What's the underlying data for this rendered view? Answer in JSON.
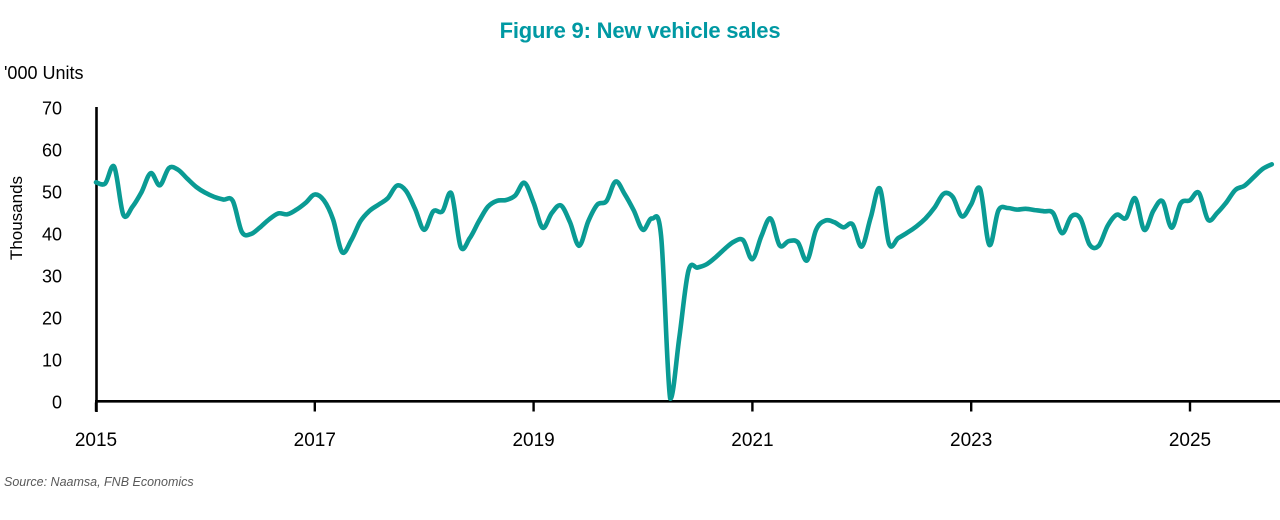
{
  "title": "Figure 9: New vehicle sales",
  "y_axis_units_label": "'000 Units",
  "y_axis_side_label": "Thousands",
  "source_note": "Source: Naamsa, FNB Economics",
  "colors": {
    "title_teal": "#0099a3",
    "line_teal": "#0a9b94",
    "axis_black": "#000000",
    "source_gray": "#595959"
  },
  "chart_data": {
    "type": "line",
    "title": "Figure 9: New vehicle sales",
    "ylabel": "Thousands",
    "y_units": "'000 Units",
    "ylim": [
      0,
      70
    ],
    "yticks": [
      0,
      10,
      20,
      30,
      40,
      50,
      60,
      70
    ],
    "xtick_labels": [
      "2015",
      "2017",
      "2019",
      "2021",
      "2023",
      "2025"
    ],
    "grid": false,
    "legend_position": "none",
    "frequency": "monthly",
    "x_start": "2015-01",
    "x_end": "2025-10",
    "series": [
      {
        "name": "New vehicle sales ('000 units)",
        "values": [
          52.3,
          52.0,
          56.0,
          44.6,
          46.5,
          50.0,
          54.5,
          51.6,
          55.7,
          55.3,
          53.2,
          51.2,
          49.8,
          48.8,
          48.2,
          47.9,
          40.5,
          40.0,
          41.6,
          43.5,
          44.9,
          44.7,
          45.8,
          47.4,
          49.4,
          48.0,
          43.5,
          35.7,
          38.5,
          43.0,
          45.5,
          47.0,
          48.5,
          51.5,
          50.3,
          46.0,
          41.0,
          45.4,
          45.4,
          49.6,
          37.0,
          39.0,
          43.0,
          46.5,
          47.9,
          48.1,
          49.2,
          52.2,
          47.5,
          41.5,
          45.0,
          46.8,
          42.8,
          37.2,
          43.0,
          47.0,
          47.8,
          52.5,
          49.5,
          45.6,
          41.0,
          43.7,
          39.5,
          0.8,
          15.5,
          31.3,
          32.0,
          32.8,
          34.5,
          36.5,
          38.2,
          38.5,
          34.0,
          39.5,
          43.7,
          37.3,
          38.3,
          38.0,
          33.7,
          41.0,
          43.2,
          42.8,
          41.6,
          42.3,
          37.0,
          44.0,
          50.8,
          37.7,
          39.0,
          40.3,
          41.8,
          43.7,
          46.3,
          49.6,
          48.8,
          44.2,
          47.0,
          50.7,
          37.4,
          45.6,
          46.2,
          45.8,
          46.0,
          45.7,
          45.4,
          45.0,
          40.2,
          44.2,
          43.7,
          37.5,
          37.2,
          42.0,
          44.6,
          43.8,
          48.5,
          41.0,
          45.5,
          47.8,
          41.5,
          47.3,
          48.0,
          49.8,
          43.4,
          45.0,
          47.5,
          50.5,
          51.5,
          53.5,
          55.5,
          56.6
        ]
      }
    ]
  }
}
